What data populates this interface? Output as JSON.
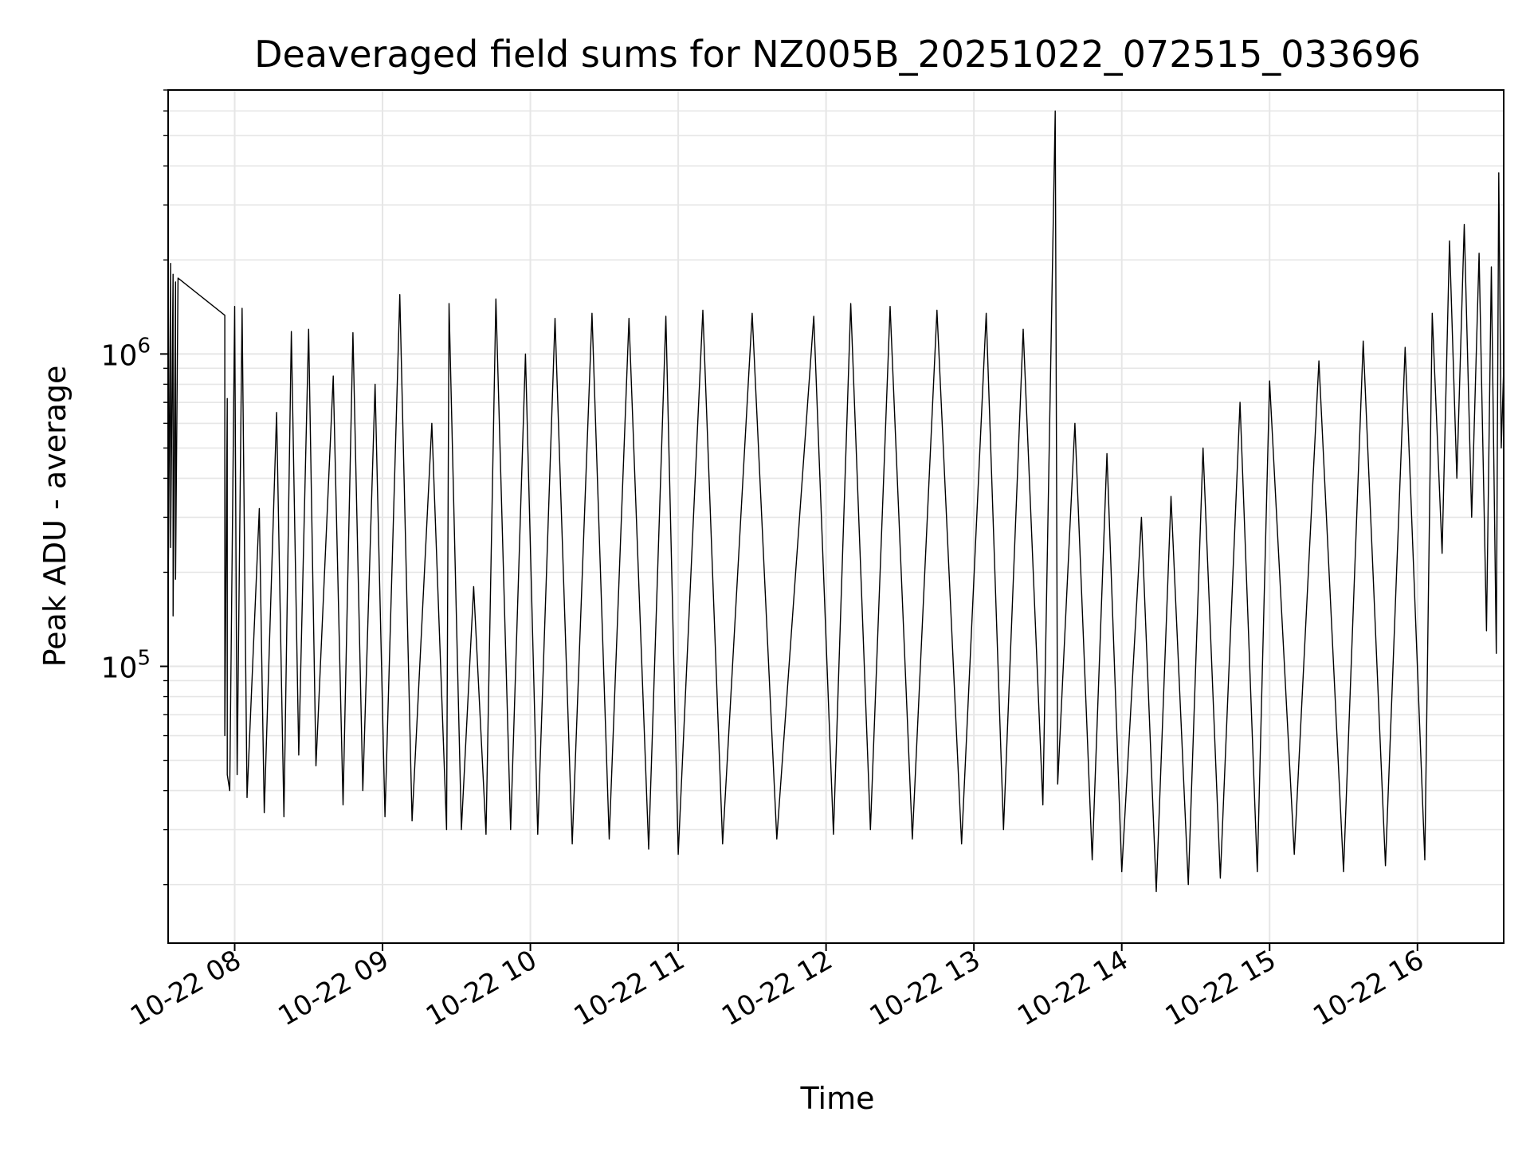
{
  "chart_data": {
    "type": "line",
    "title": "Deaveraged field sums for NZ005B_20251022_072515_033696",
    "xlabel": "Time",
    "ylabel": "Peak ADU - average",
    "yscale": "log",
    "ylim": [
      13000,
      7000000
    ],
    "xlim": [
      "2025-10-22 07:33",
      "2025-10-22 16:35"
    ],
    "grid": true,
    "legend": "none",
    "line_color": "#000000",
    "x_ticks": [
      {
        "x": "2025-10-22 08:00",
        "label": "10-22 08"
      },
      {
        "x": "2025-10-22 09:00",
        "label": "10-22 09"
      },
      {
        "x": "2025-10-22 10:00",
        "label": "10-22 10"
      },
      {
        "x": "2025-10-22 11:00",
        "label": "10-22 11"
      },
      {
        "x": "2025-10-22 12:00",
        "label": "10-22 12"
      },
      {
        "x": "2025-10-22 13:00",
        "label": "10-22 13"
      },
      {
        "x": "2025-10-22 14:00",
        "label": "10-22 14"
      },
      {
        "x": "2025-10-22 15:00",
        "label": "10-22 15"
      },
      {
        "x": "2025-10-22 16:00",
        "label": "10-22 16"
      }
    ],
    "y_ticks": [
      {
        "value": 100000,
        "base": "10",
        "exp": "5"
      },
      {
        "value": 1000000,
        "base": "10",
        "exp": "6"
      }
    ],
    "series": [
      {
        "values": [
          [
            "2025-10-22 07:33",
            1900000
          ],
          [
            "2025-10-22 07:33",
            160000
          ],
          [
            "2025-10-22 07:34",
            1950000
          ],
          [
            "2025-10-22 07:34",
            240000
          ],
          [
            "2025-10-22 07:35",
            1800000
          ],
          [
            "2025-10-22 07:35",
            145000
          ],
          [
            "2025-10-22 07:36",
            1700000
          ],
          [
            "2025-10-22 07:36",
            190000
          ],
          [
            "2025-10-22 07:37",
            1750000
          ],
          [
            "2025-10-22 07:56",
            1330000
          ],
          [
            "2025-10-22 07:56",
            60000
          ],
          [
            "2025-10-22 07:57",
            720000
          ],
          [
            "2025-10-22 07:57",
            45000
          ],
          [
            "2025-10-22 07:58",
            40000
          ],
          [
            "2025-10-22 08:00",
            1420000
          ],
          [
            "2025-10-22 08:01",
            45000
          ],
          [
            "2025-10-22 08:03",
            1400000
          ],
          [
            "2025-10-22 08:05",
            38000
          ],
          [
            "2025-10-22 08:10",
            320000
          ],
          [
            "2025-10-22 08:12",
            34000
          ],
          [
            "2025-10-22 08:17",
            650000
          ],
          [
            "2025-10-22 08:20",
            33000
          ],
          [
            "2025-10-22 08:23",
            1180000
          ],
          [
            "2025-10-22 08:26",
            52000
          ],
          [
            "2025-10-22 08:30",
            1200000
          ],
          [
            "2025-10-22 08:33",
            48000
          ],
          [
            "2025-10-22 08:40",
            850000
          ],
          [
            "2025-10-22 08:44",
            36000
          ],
          [
            "2025-10-22 08:48",
            1170000
          ],
          [
            "2025-10-22 08:52",
            40000
          ],
          [
            "2025-10-22 08:57",
            800000
          ],
          [
            "2025-10-22 09:01",
            33000
          ],
          [
            "2025-10-22 09:07",
            1550000
          ],
          [
            "2025-10-22 09:12",
            32000
          ],
          [
            "2025-10-22 09:20",
            600000
          ],
          [
            "2025-10-22 09:26",
            30000
          ],
          [
            "2025-10-22 09:27",
            1450000
          ],
          [
            "2025-10-22 09:32",
            30000
          ],
          [
            "2025-10-22 09:37",
            180000
          ],
          [
            "2025-10-22 09:42",
            29000
          ],
          [
            "2025-10-22 09:46",
            1500000
          ],
          [
            "2025-10-22 09:52",
            30000
          ],
          [
            "2025-10-22 09:58",
            1000000
          ],
          [
            "2025-10-22 10:03",
            29000
          ],
          [
            "2025-10-22 10:10",
            1300000
          ],
          [
            "2025-10-22 10:17",
            27000
          ],
          [
            "2025-10-22 10:25",
            1350000
          ],
          [
            "2025-10-22 10:32",
            28000
          ],
          [
            "2025-10-22 10:40",
            1300000
          ],
          [
            "2025-10-22 10:48",
            26000
          ],
          [
            "2025-10-22 10:55",
            1320000
          ],
          [
            "2025-10-22 11:00",
            25000
          ],
          [
            "2025-10-22 11:10",
            1380000
          ],
          [
            "2025-10-22 11:18",
            27000
          ],
          [
            "2025-10-22 11:30",
            1350000
          ],
          [
            "2025-10-22 11:40",
            28000
          ],
          [
            "2025-10-22 11:55",
            1320000
          ],
          [
            "2025-10-22 12:03",
            29000
          ],
          [
            "2025-10-22 12:10",
            1450000
          ],
          [
            "2025-10-22 12:18",
            30000
          ],
          [
            "2025-10-22 12:26",
            1420000
          ],
          [
            "2025-10-22 12:35",
            28000
          ],
          [
            "2025-10-22 12:45",
            1380000
          ],
          [
            "2025-10-22 12:55",
            27000
          ],
          [
            "2025-10-22 13:05",
            1350000
          ],
          [
            "2025-10-22 13:12",
            30000
          ],
          [
            "2025-10-22 13:20",
            1200000
          ],
          [
            "2025-10-22 13:28",
            36000
          ],
          [
            "2025-10-22 13:33",
            6000000
          ],
          [
            "2025-10-22 13:34",
            42000
          ],
          [
            "2025-10-22 13:41",
            600000
          ],
          [
            "2025-10-22 13:48",
            24000
          ],
          [
            "2025-10-22 13:54",
            480000
          ],
          [
            "2025-10-22 14:00",
            22000
          ],
          [
            "2025-10-22 14:08",
            300000
          ],
          [
            "2025-10-22 14:14",
            19000
          ],
          [
            "2025-10-22 14:20",
            350000
          ],
          [
            "2025-10-22 14:27",
            20000
          ],
          [
            "2025-10-22 14:33",
            500000
          ],
          [
            "2025-10-22 14:40",
            21000
          ],
          [
            "2025-10-22 14:48",
            700000
          ],
          [
            "2025-10-22 14:55",
            22000
          ],
          [
            "2025-10-22 15:00",
            820000
          ],
          [
            "2025-10-22 15:10",
            25000
          ],
          [
            "2025-10-22 15:20",
            950000
          ],
          [
            "2025-10-22 15:30",
            22000
          ],
          [
            "2025-10-22 15:38",
            1100000
          ],
          [
            "2025-10-22 15:47",
            23000
          ],
          [
            "2025-10-22 15:55",
            1050000
          ],
          [
            "2025-10-22 16:03",
            24000
          ],
          [
            "2025-10-22 16:06",
            1350000
          ],
          [
            "2025-10-22 16:10",
            230000
          ],
          [
            "2025-10-22 16:13",
            2300000
          ],
          [
            "2025-10-22 16:16",
            400000
          ],
          [
            "2025-10-22 16:19",
            2600000
          ],
          [
            "2025-10-22 16:22",
            300000
          ],
          [
            "2025-10-22 16:25",
            2100000
          ],
          [
            "2025-10-22 16:28",
            130000
          ],
          [
            "2025-10-22 16:30",
            1900000
          ],
          [
            "2025-10-22 16:32",
            110000
          ],
          [
            "2025-10-22 16:33",
            3800000
          ],
          [
            "2025-10-22 16:34",
            500000
          ],
          [
            "2025-10-22 16:35",
            900000
          ]
        ]
      }
    ]
  }
}
